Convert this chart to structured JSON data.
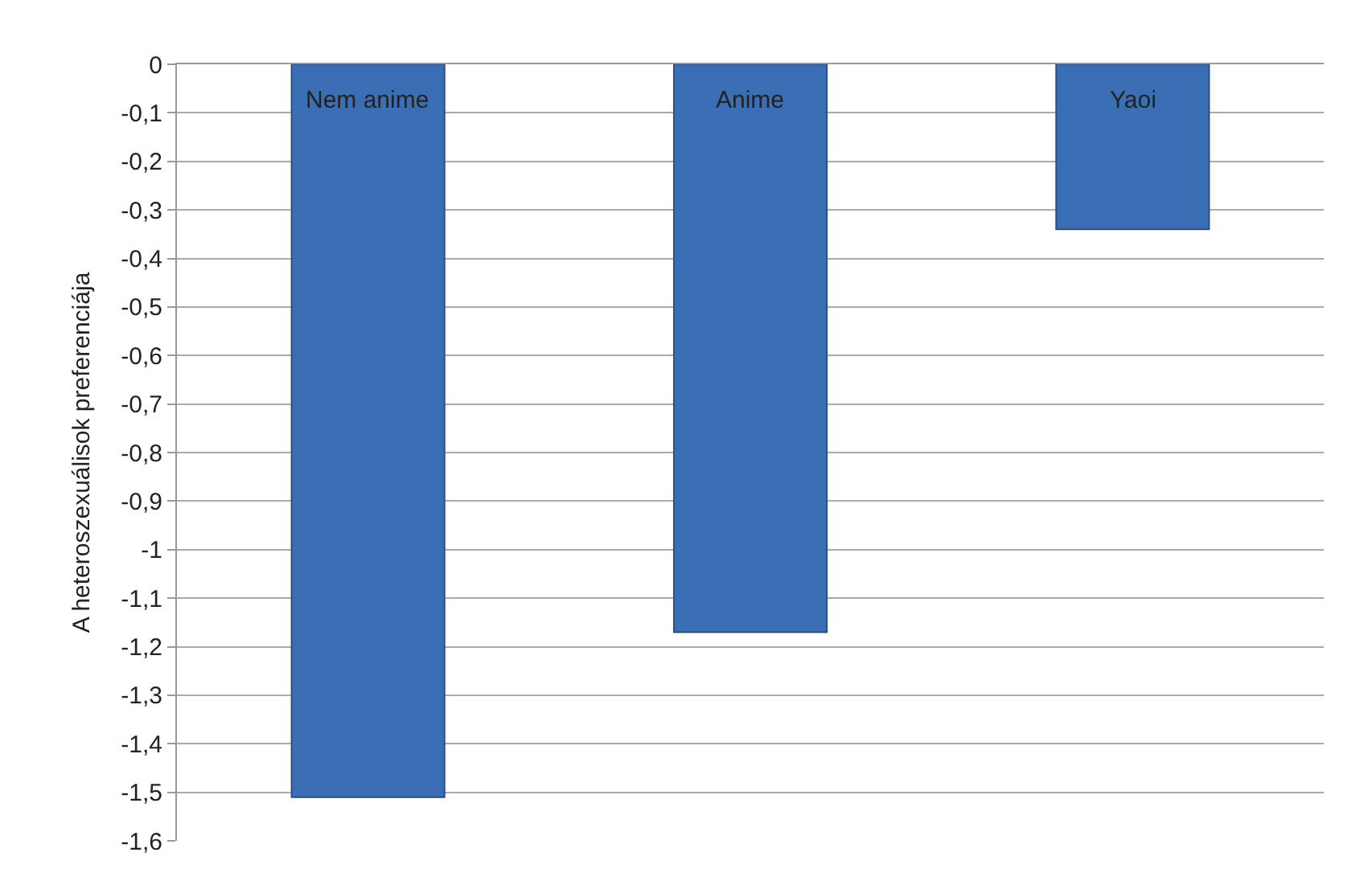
{
  "chart_data": {
    "type": "bar",
    "ylabel": "A heteroszexuálisok preferenciája",
    "categories": [
      "Nem anime",
      "Anime",
      "Yaoi"
    ],
    "values": [
      -1.51,
      -1.17,
      -0.34
    ],
    "color": "#3a6fb5",
    "ylim": [
      -1.6,
      0
    ],
    "yticks": [
      {
        "value": 0,
        "label": "0"
      },
      {
        "value": -0.1,
        "label": "-0,1"
      },
      {
        "value": -0.2,
        "label": "-0,2"
      },
      {
        "value": -0.3,
        "label": "-0,3"
      },
      {
        "value": -0.4,
        "label": "-0,4"
      },
      {
        "value": -0.5,
        "label": "-0,5"
      },
      {
        "value": -0.6,
        "label": "-0,6"
      },
      {
        "value": -0.7,
        "label": "-0,7"
      },
      {
        "value": -0.8,
        "label": "-0,8"
      },
      {
        "value": -0.9,
        "label": "-0,9"
      },
      {
        "value": -1,
        "label": "-1"
      },
      {
        "value": -1.1,
        "label": "-1,1"
      },
      {
        "value": -1.2,
        "label": "-1,2"
      },
      {
        "value": -1.3,
        "label": "-1,3"
      },
      {
        "value": -1.4,
        "label": "-1,4"
      },
      {
        "value": -1.5,
        "label": "-1,5"
      },
      {
        "value": -1.6,
        "label": "-1,6"
      }
    ],
    "grid": "y",
    "legend": false
  }
}
